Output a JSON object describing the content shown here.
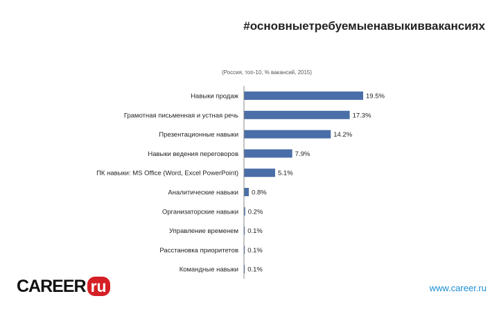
{
  "chart_data": {
    "type": "bar",
    "orientation": "horizontal",
    "title": "#основныетребуемыенавыкиввакансиях",
    "subtitle": "(Россия, топ-10, % вакансий, 2015)",
    "categories": [
      "Навыки продаж",
      "Грамотная письменная и устная речь",
      "Презентационные навыки",
      "Навыки ведения переговоров",
      "ПК навыки: MS Office (Word, Excel PowerPoint)",
      "Аналитические навыки",
      "Организаторские навыки",
      "Управление временем",
      "Расстановка приоритетов",
      "Командные навыки"
    ],
    "values": [
      19.5,
      17.3,
      14.2,
      7.9,
      5.1,
      0.8,
      0.2,
      0.1,
      0.1,
      0.1
    ],
    "value_labels": [
      "19.5%",
      "17.3%",
      "14.2%",
      "7.9%",
      "5.1%",
      "0.8%",
      "0.2%",
      "0.1%",
      "0.1%",
      "0.1%"
    ],
    "xlim": [
      0,
      19.5
    ],
    "bar_color": "#4a6ea8",
    "grid": false,
    "legend": "none"
  },
  "branding": {
    "logo_text": "CAREER",
    "logo_badge": "ru",
    "logo_color": "#d51f26",
    "site": "www.career.ru",
    "site_color": "#1a8fd6"
  }
}
